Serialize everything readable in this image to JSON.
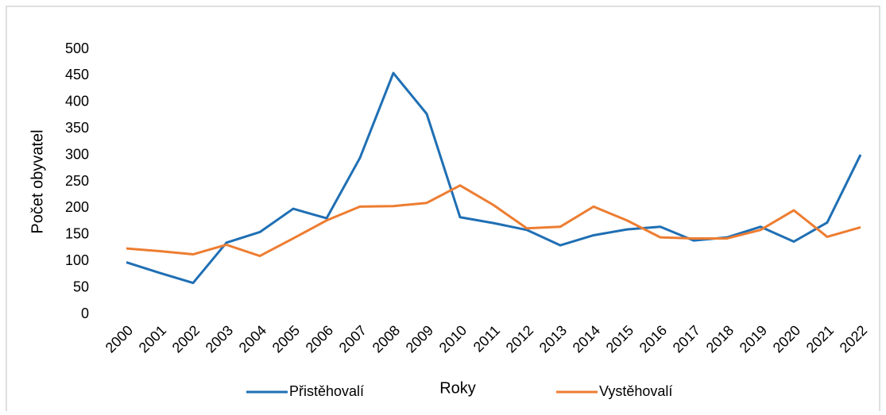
{
  "chart_data": {
    "type": "line",
    "x_label": "Roky",
    "y_label": "Počet obyvatel",
    "categories": [
      "2000",
      "2001",
      "2002",
      "2003",
      "2004",
      "2005",
      "2006",
      "2007",
      "2008",
      "2009",
      "2010",
      "2011",
      "2012",
      "2013",
      "2014",
      "2015",
      "2016",
      "2017",
      "2018",
      "2019",
      "2020",
      "2021",
      "2022"
    ],
    "series": [
      {
        "name": "Přistěhovalí",
        "color": "#1f6fb4",
        "values": [
          98,
          78,
          59,
          135,
          155,
          199,
          181,
          295,
          455,
          378,
          183,
          172,
          159,
          130,
          149,
          160,
          165,
          139,
          145,
          165,
          137,
          173,
          301
        ]
      },
      {
        "name": "Vystěhovalí",
        "color": "#ed7d31",
        "values": [
          124,
          119,
          113,
          131,
          110,
          143,
          177,
          203,
          204,
          210,
          243,
          206,
          162,
          165,
          203,
          177,
          145,
          143,
          143,
          159,
          196,
          146,
          164
        ]
      }
    ],
    "ylim": [
      0,
      500
    ],
    "yticks": [
      0,
      50,
      100,
      150,
      200,
      250,
      300,
      350,
      400,
      450,
      500
    ],
    "legend": "bottom"
  }
}
